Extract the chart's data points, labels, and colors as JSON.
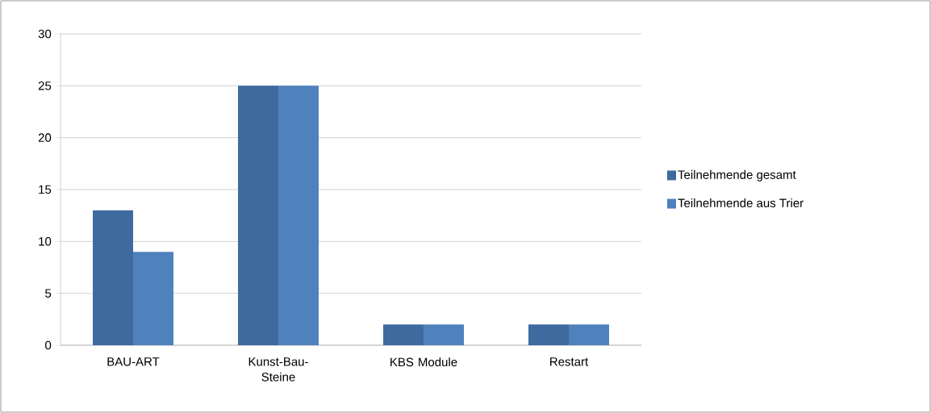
{
  "chart_data": {
    "type": "bar",
    "categories": [
      "BAU-ART",
      "Kunst-Bau-Steine",
      "KBS Module",
      "Restart"
    ],
    "series": [
      {
        "name": "Teilnehmende gesamt",
        "color": "#3f6aa0",
        "values": [
          13,
          25,
          2,
          2
        ]
      },
      {
        "name": "Teilnehmende aus Trier",
        "color": "#4f81bd",
        "values": [
          9,
          25,
          2,
          2
        ]
      }
    ],
    "ylim": [
      0,
      30
    ],
    "yticks": [
      0,
      5,
      10,
      15,
      20,
      25,
      30
    ],
    "grid": "y",
    "legend": "right"
  }
}
